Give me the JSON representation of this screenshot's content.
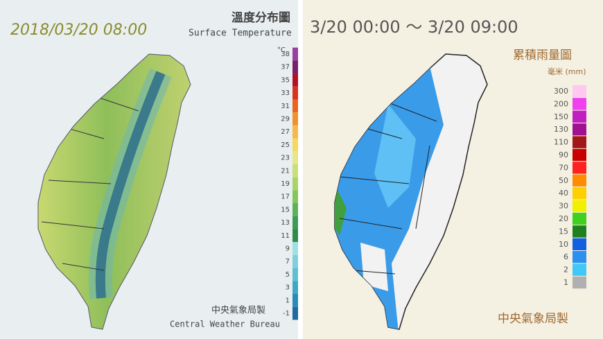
{
  "left_panel": {
    "timestamp": "2018/03/20 08:00",
    "title": "溫度分布圖",
    "subtitle": "Surface Temperature",
    "unit": "°C",
    "legend": [
      {
        "label": "38",
        "color": "#9b3fa0"
      },
      {
        "label": "37",
        "color": "#7a1f6a"
      },
      {
        "label": "35",
        "color": "#b0102a"
      },
      {
        "label": "33",
        "color": "#d9331b"
      },
      {
        "label": "31",
        "color": "#e9651f"
      },
      {
        "label": "29",
        "color": "#f0922b"
      },
      {
        "label": "27",
        "color": "#f6b84a"
      },
      {
        "label": "25",
        "color": "#f4d860"
      },
      {
        "label": "23",
        "color": "#e6e68a"
      },
      {
        "label": "21",
        "color": "#c9e07a"
      },
      {
        "label": "19",
        "color": "#a8d46a"
      },
      {
        "label": "17",
        "color": "#86c45c"
      },
      {
        "label": "15",
        "color": "#5fb05a"
      },
      {
        "label": "13",
        "color": "#3f9a58"
      },
      {
        "label": "11",
        "color": "#2f8a4e"
      },
      {
        "label": "9",
        "color": "#9fe0e6"
      },
      {
        "label": "7",
        "color": "#7fd0dc"
      },
      {
        "label": "5",
        "color": "#5fc0d4"
      },
      {
        "label": "3",
        "color": "#3fa8c8"
      },
      {
        "label": "1",
        "color": "#2a8ab8"
      },
      {
        "label": "-1",
        "color": "#1f6aa0"
      }
    ],
    "credit_zh": "中央氣象局製",
    "credit_en": "Central Weather Bureau"
  },
  "right_panel": {
    "period": "3/20 00:00 ～ 3/20 09:00",
    "title": "累積雨量圖",
    "unit": "毫米 (mm)",
    "legend": [
      {
        "label": "300",
        "color": "#ffc8f0"
      },
      {
        "label": "200",
        "color": "#f040f0"
      },
      {
        "label": "150",
        "color": "#c020c0"
      },
      {
        "label": "130",
        "color": "#a01090"
      },
      {
        "label": "110",
        "color": "#a01818"
      },
      {
        "label": "90",
        "color": "#c80000"
      },
      {
        "label": "70",
        "color": "#ff2020"
      },
      {
        "label": "50",
        "color": "#ff8c00"
      },
      {
        "label": "40",
        "color": "#ffd000"
      },
      {
        "label": "30",
        "color": "#f0f000"
      },
      {
        "label": "20",
        "color": "#40d020"
      },
      {
        "label": "15",
        "color": "#208020"
      },
      {
        "label": "10",
        "color": "#1060e0"
      },
      {
        "label": "6",
        "color": "#2c90f0"
      },
      {
        "label": "2",
        "color": "#40c8f8"
      },
      {
        "label": "1",
        "color": "#b0b0b0"
      }
    ],
    "credit": "中央氣象局製"
  }
}
